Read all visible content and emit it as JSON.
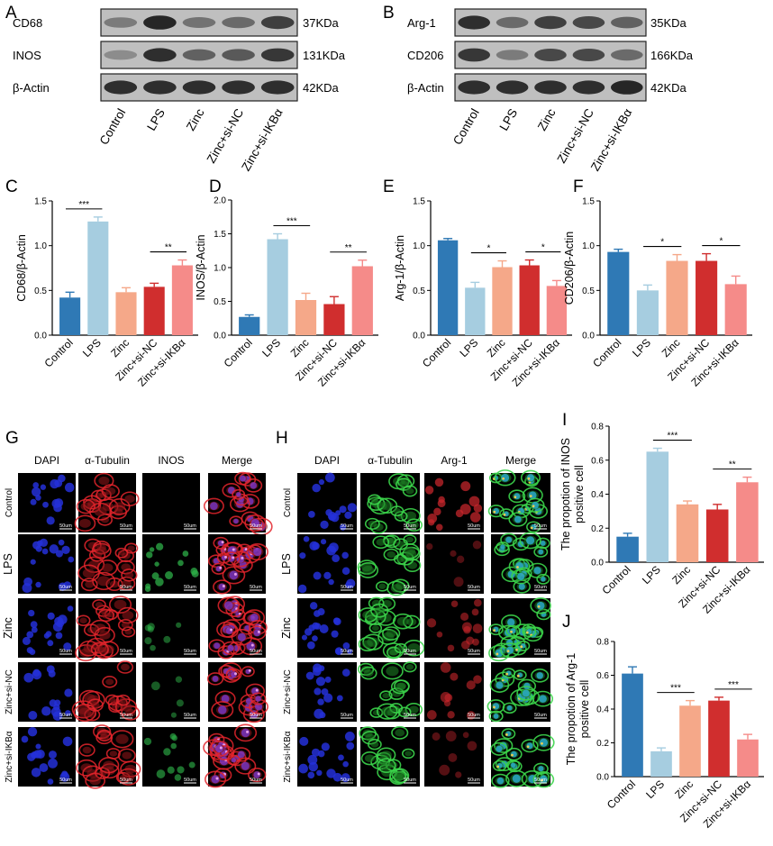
{
  "panel_labels": [
    "A",
    "B",
    "C",
    "D",
    "E",
    "F",
    "G",
    "H",
    "I",
    "J"
  ],
  "colors": {
    "Control": "#2f79b5",
    "LPS": "#a6cde0",
    "Zinc": "#f5a889",
    "Zinc+si-NC": "#d02e2e",
    "Zinc+si-IKBα": "#f58b89"
  },
  "western": {
    "A": {
      "rows": [
        {
          "name": "CD68",
          "size": "37KDa",
          "intensity": [
            0.45,
            0.95,
            0.5,
            0.55,
            0.8
          ]
        },
        {
          "name": "INOS",
          "size": "131KDa",
          "intensity": [
            0.35,
            0.9,
            0.6,
            0.65,
            0.85
          ]
        },
        {
          "name": "β-Actin",
          "size": "42KDa",
          "intensity": [
            0.9,
            0.9,
            0.9,
            0.9,
            0.9
          ]
        }
      ],
      "lanes": [
        "Control",
        "LPS",
        "Zinc",
        "Zinc+si-NC",
        "Zinc+si-IKBα"
      ]
    },
    "B": {
      "rows": [
        {
          "name": "Arg-1",
          "size": "35KDa",
          "intensity": [
            0.9,
            0.55,
            0.8,
            0.75,
            0.6
          ]
        },
        {
          "name": "CD206",
          "size": "166KDa",
          "intensity": [
            0.85,
            0.45,
            0.75,
            0.75,
            0.55
          ]
        },
        {
          "name": "β-Actin",
          "size": "42KDa",
          "intensity": [
            0.9,
            0.9,
            0.9,
            0.9,
            0.95
          ]
        }
      ],
      "lanes": [
        "Control",
        "LPS",
        "Zinc",
        "Zinc+si-NC",
        "Zinc+si-IKBα"
      ]
    }
  },
  "chart_data": [
    {
      "panel": "C",
      "type": "bar",
      "ylabel": "CD68/β-Actin",
      "ylim": [
        0,
        1.5
      ],
      "yticks": [
        "0.0",
        "0.5",
        "1.0",
        "1.5"
      ],
      "categories": [
        "Control",
        "LPS",
        "Zinc",
        "Zinc+si-NC",
        "Zinc+si-IKBα"
      ],
      "values": [
        0.42,
        1.27,
        0.48,
        0.54,
        0.78
      ],
      "errors": [
        0.06,
        0.05,
        0.05,
        0.04,
        0.06
      ],
      "significance": [
        {
          "from": 0,
          "to": 1,
          "label": "***"
        },
        {
          "from": 3,
          "to": 4,
          "label": "**"
        }
      ]
    },
    {
      "panel": "D",
      "type": "bar",
      "ylabel": "INOS/β-Actin",
      "ylim": [
        0,
        2.0
      ],
      "yticks": [
        "0.0",
        "0.5",
        "1.0",
        "1.5",
        "2.0"
      ],
      "categories": [
        "Control",
        "LPS",
        "Zinc",
        "Zinc+si-NC",
        "Zinc+si-IKBα"
      ],
      "values": [
        0.27,
        1.42,
        0.52,
        0.46,
        1.02
      ],
      "errors": [
        0.03,
        0.08,
        0.1,
        0.11,
        0.09
      ],
      "significance": [
        {
          "from": 1,
          "to": 2,
          "label": "***"
        },
        {
          "from": 3,
          "to": 4,
          "label": "**"
        }
      ]
    },
    {
      "panel": "E",
      "type": "bar",
      "ylabel": "Arg-1/β-Actin",
      "ylim": [
        0,
        1.5
      ],
      "yticks": [
        "0.0",
        "0.5",
        "1.0",
        "1.5"
      ],
      "categories": [
        "Control",
        "LPS",
        "Zinc",
        "Zinc+si-NC",
        "Zinc+si-IKBα"
      ],
      "values": [
        1.06,
        0.53,
        0.76,
        0.78,
        0.55
      ],
      "errors": [
        0.02,
        0.06,
        0.07,
        0.06,
        0.06
      ],
      "significance": [
        {
          "from": 1,
          "to": 2,
          "label": "*"
        },
        {
          "from": 3,
          "to": 4,
          "label": "*"
        }
      ]
    },
    {
      "panel": "F",
      "type": "bar",
      "ylabel": "CD206/β-Actin",
      "ylim": [
        0,
        1.5
      ],
      "yticks": [
        "0.0",
        "0.5",
        "1.0",
        "1.5"
      ],
      "categories": [
        "Control",
        "LPS",
        "Zinc",
        "Zinc+si-NC",
        "Zinc+si-IKBα"
      ],
      "values": [
        0.93,
        0.5,
        0.83,
        0.83,
        0.57
      ],
      "errors": [
        0.03,
        0.06,
        0.07,
        0.08,
        0.09
      ],
      "significance": [
        {
          "from": 1,
          "to": 2,
          "label": "*"
        },
        {
          "from": 3,
          "to": 4,
          "label": "*"
        }
      ]
    },
    {
      "panel": "I",
      "type": "bar",
      "ylabel": "The propotion of INOS positive cell",
      "ylim": [
        0,
        0.8
      ],
      "yticks": [
        "0.0",
        "0.2",
        "0.4",
        "0.6",
        "0.8"
      ],
      "categories": [
        "Control",
        "LPS",
        "Zinc",
        "Zinc+si-NC",
        "Zinc+si-IKBα"
      ],
      "values": [
        0.15,
        0.65,
        0.34,
        0.31,
        0.47
      ],
      "errors": [
        0.02,
        0.02,
        0.02,
        0.03,
        0.03
      ],
      "significance": [
        {
          "from": 1,
          "to": 2,
          "label": "***"
        },
        {
          "from": 3,
          "to": 4,
          "label": "**"
        }
      ]
    },
    {
      "panel": "J",
      "type": "bar",
      "ylabel": "The propotion of Arg-1 positive cell",
      "ylim": [
        0,
        0.8
      ],
      "yticks": [
        "0.0",
        "0.2",
        "0.4",
        "0.6",
        "0.8"
      ],
      "categories": [
        "Control",
        "LPS",
        "Zinc",
        "Zinc+si-NC",
        "Zinc+si-IKBα"
      ],
      "values": [
        0.61,
        0.15,
        0.42,
        0.45,
        0.22
      ],
      "errors": [
        0.04,
        0.02,
        0.03,
        0.02,
        0.03
      ],
      "significance": [
        {
          "from": 1,
          "to": 2,
          "label": "***"
        },
        {
          "from": 3,
          "to": 4,
          "label": "***"
        }
      ]
    }
  ],
  "fluorescence": {
    "G": {
      "columns": [
        {
          "title": "DAPI",
          "type": "dapi"
        },
        {
          "title": "α-Tubulin",
          "type": "tubulin_red"
        },
        {
          "title": "INOS",
          "type": "marker_green"
        },
        {
          "title": "Merge",
          "type": "merge_red"
        }
      ],
      "rows": [
        "Control",
        "LPS",
        "Zinc",
        "Zinc+si-NC",
        "Zinc+si-IKBα"
      ],
      "marker_level": [
        0.05,
        0.75,
        0.35,
        0.3,
        0.55
      ],
      "scalebar": "50um"
    },
    "H": {
      "columns": [
        {
          "title": "DAPI",
          "type": "dapi"
        },
        {
          "title": "α-Tubulin",
          "type": "tubulin_green"
        },
        {
          "title": "Arg-1",
          "type": "marker_red"
        },
        {
          "title": "Merge",
          "type": "merge_green"
        }
      ],
      "rows": [
        "Control",
        "LPS",
        "Zinc",
        "Zinc+si-NC",
        "Zinc+si-IKBα"
      ],
      "marker_level": [
        0.85,
        0.2,
        0.55,
        0.6,
        0.25
      ],
      "scalebar": "50um"
    }
  }
}
